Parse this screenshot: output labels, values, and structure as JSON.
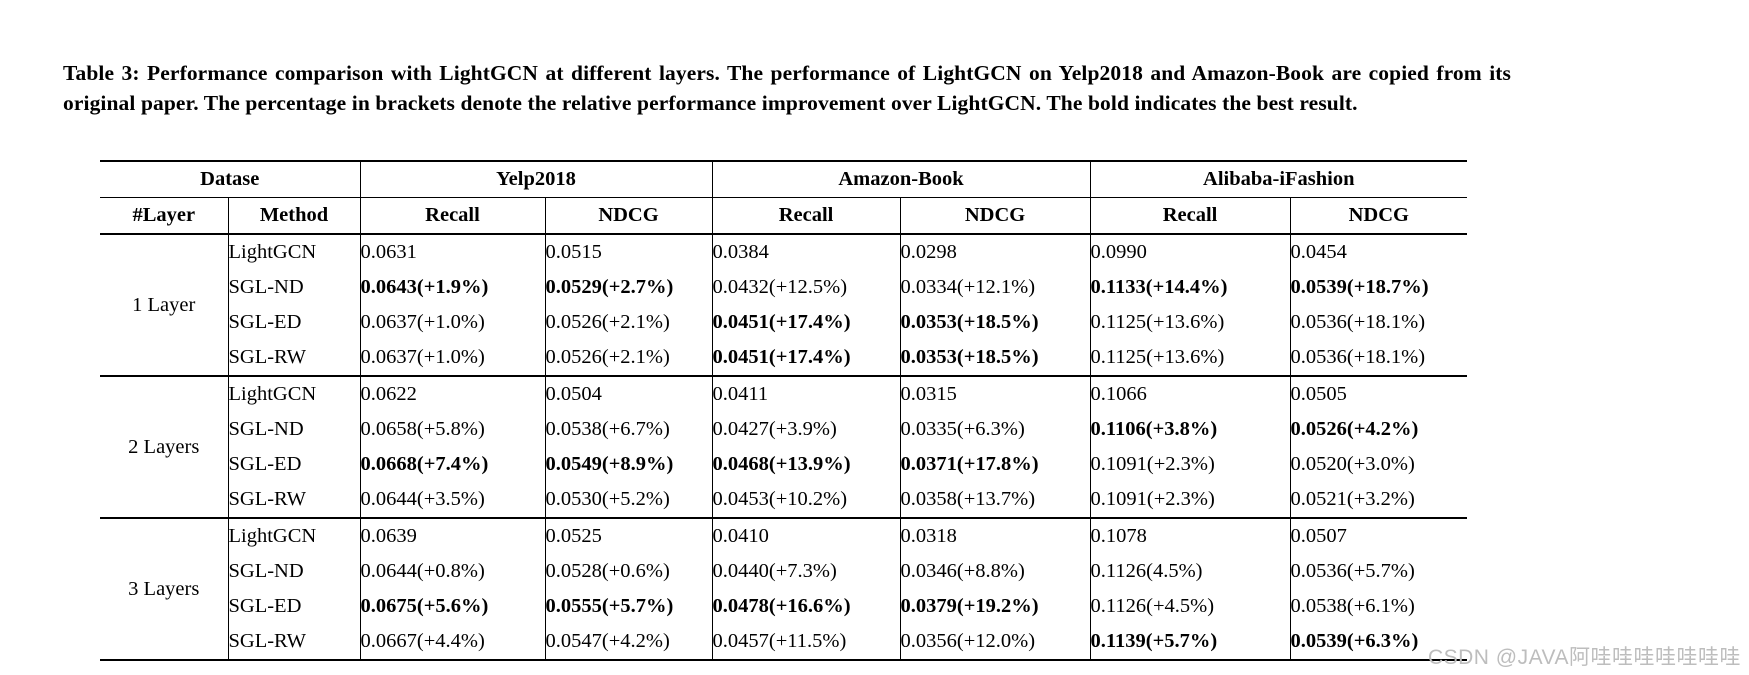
{
  "caption": "Table 3: Performance comparison with LightGCN at different layers. The performance of LightGCN on Yelp2018 and Amazon-Book are copied from its original paper. The percentage in brackets denote the relative performance improvement over LightGCN. The bold indicates the best result.",
  "table": {
    "header_row1": {
      "dataset_label": "Datase",
      "datasets": [
        "Yelp2018",
        "Amazon-Book",
        "Alibaba-iFashion"
      ]
    },
    "header_row2": {
      "layer": "#Layer",
      "method": "Method",
      "metrics": [
        "Recall",
        "NDCG",
        "Recall",
        "NDCG",
        "Recall",
        "NDCG"
      ]
    },
    "groups": [
      {
        "layer": "1 Layer",
        "rows": [
          {
            "method": "LightGCN",
            "cells": [
              {
                "t": "0.0631",
                "b": false
              },
              {
                "t": "0.0515",
                "b": false
              },
              {
                "t": "0.0384",
                "b": false
              },
              {
                "t": "0.0298",
                "b": false
              },
              {
                "t": "0.0990",
                "b": false
              },
              {
                "t": "0.0454",
                "b": false
              }
            ]
          },
          {
            "method": "SGL-ND",
            "cells": [
              {
                "t": "0.0643(+1.9%)",
                "b": true
              },
              {
                "t": "0.0529(+2.7%)",
                "b": true
              },
              {
                "t": "0.0432(+12.5%)",
                "b": false
              },
              {
                "t": "0.0334(+12.1%)",
                "b": false
              },
              {
                "t": "0.1133(+14.4%)",
                "b": true
              },
              {
                "t": "0.0539(+18.7%)",
                "b": true
              }
            ]
          },
          {
            "method": "SGL-ED",
            "cells": [
              {
                "t": "0.0637(+1.0%)",
                "b": false
              },
              {
                "t": "0.0526(+2.1%)",
                "b": false
              },
              {
                "t": "0.0451(+17.4%)",
                "b": true
              },
              {
                "t": "0.0353(+18.5%)",
                "b": true
              },
              {
                "t": "0.1125(+13.6%)",
                "b": false
              },
              {
                "t": "0.0536(+18.1%)",
                "b": false
              }
            ]
          },
          {
            "method": "SGL-RW",
            "cells": [
              {
                "t": "0.0637(+1.0%)",
                "b": false
              },
              {
                "t": "0.0526(+2.1%)",
                "b": false
              },
              {
                "t": "0.0451(+17.4%)",
                "b": true
              },
              {
                "t": "0.0353(+18.5%)",
                "b": true
              },
              {
                "t": "0.1125(+13.6%)",
                "b": false
              },
              {
                "t": "0.0536(+18.1%)",
                "b": false
              }
            ]
          }
        ]
      },
      {
        "layer": "2 Layers",
        "rows": [
          {
            "method": "LightGCN",
            "cells": [
              {
                "t": "0.0622",
                "b": false
              },
              {
                "t": "0.0504",
                "b": false
              },
              {
                "t": "0.0411",
                "b": false
              },
              {
                "t": "0.0315",
                "b": false
              },
              {
                "t": "0.1066",
                "b": false
              },
              {
                "t": "0.0505",
                "b": false
              }
            ]
          },
          {
            "method": "SGL-ND",
            "cells": [
              {
                "t": "0.0658(+5.8%)",
                "b": false
              },
              {
                "t": "0.0538(+6.7%)",
                "b": false
              },
              {
                "t": "0.0427(+3.9%)",
                "b": false
              },
              {
                "t": "0.0335(+6.3%)",
                "b": false
              },
              {
                "t": "0.1106(+3.8%)",
                "b": true
              },
              {
                "t": "0.0526(+4.2%)",
                "b": true
              }
            ]
          },
          {
            "method": "SGL-ED",
            "cells": [
              {
                "t": "0.0668(+7.4%)",
                "b": true
              },
              {
                "t": "0.0549(+8.9%)",
                "b": true
              },
              {
                "t": "0.0468(+13.9%)",
                "b": true
              },
              {
                "t": "0.0371(+17.8%)",
                "b": true
              },
              {
                "t": "0.1091(+2.3%)",
                "b": false
              },
              {
                "t": "0.0520(+3.0%)",
                "b": false
              }
            ]
          },
          {
            "method": "SGL-RW",
            "cells": [
              {
                "t": "0.0644(+3.5%)",
                "b": false
              },
              {
                "t": "0.0530(+5.2%)",
                "b": false
              },
              {
                "t": "0.0453(+10.2%)",
                "b": false
              },
              {
                "t": "0.0358(+13.7%)",
                "b": false
              },
              {
                "t": "0.1091(+2.3%)",
                "b": false
              },
              {
                "t": "0.0521(+3.2%)",
                "b": false
              }
            ]
          }
        ]
      },
      {
        "layer": "3 Layers",
        "rows": [
          {
            "method": "LightGCN",
            "cells": [
              {
                "t": "0.0639",
                "b": false
              },
              {
                "t": "0.0525",
                "b": false
              },
              {
                "t": "0.0410",
                "b": false
              },
              {
                "t": "0.0318",
                "b": false
              },
              {
                "t": "0.1078",
                "b": false
              },
              {
                "t": "0.0507",
                "b": false
              }
            ]
          },
          {
            "method": "SGL-ND",
            "cells": [
              {
                "t": "0.0644(+0.8%)",
                "b": false
              },
              {
                "t": "0.0528(+0.6%)",
                "b": false
              },
              {
                "t": "0.0440(+7.3%)",
                "b": false
              },
              {
                "t": "0.0346(+8.8%)",
                "b": false
              },
              {
                "t": "0.1126(4.5%)",
                "b": false
              },
              {
                "t": "0.0536(+5.7%)",
                "b": false
              }
            ]
          },
          {
            "method": "SGL-ED",
            "cells": [
              {
                "t": "0.0675(+5.6%)",
                "b": true
              },
              {
                "t": "0.0555(+5.7%)",
                "b": true
              },
              {
                "t": "0.0478(+16.6%)",
                "b": true
              },
              {
                "t": "0.0379(+19.2%)",
                "b": true
              },
              {
                "t": "0.1126(+4.5%)",
                "b": false
              },
              {
                "t": "0.0538(+6.1%)",
                "b": false
              }
            ]
          },
          {
            "method": "SGL-RW",
            "cells": [
              {
                "t": "0.0667(+4.4%)",
                "b": false
              },
              {
                "t": "0.0547(+4.2%)",
                "b": false
              },
              {
                "t": "0.0457(+11.5%)",
                "b": false
              },
              {
                "t": "0.0356(+12.0%)",
                "b": false
              },
              {
                "t": "0.1139(+5.7%)",
                "b": true
              },
              {
                "t": "0.0539(+6.3%)",
                "b": true
              }
            ]
          }
        ]
      }
    ]
  },
  "watermark": "CSDN @JAVA阿哇哇哇哇哇哇哇",
  "colors": {
    "text": "#000000",
    "background": "#ffffff",
    "border": "#000000",
    "watermark": "#bdbdbd"
  }
}
